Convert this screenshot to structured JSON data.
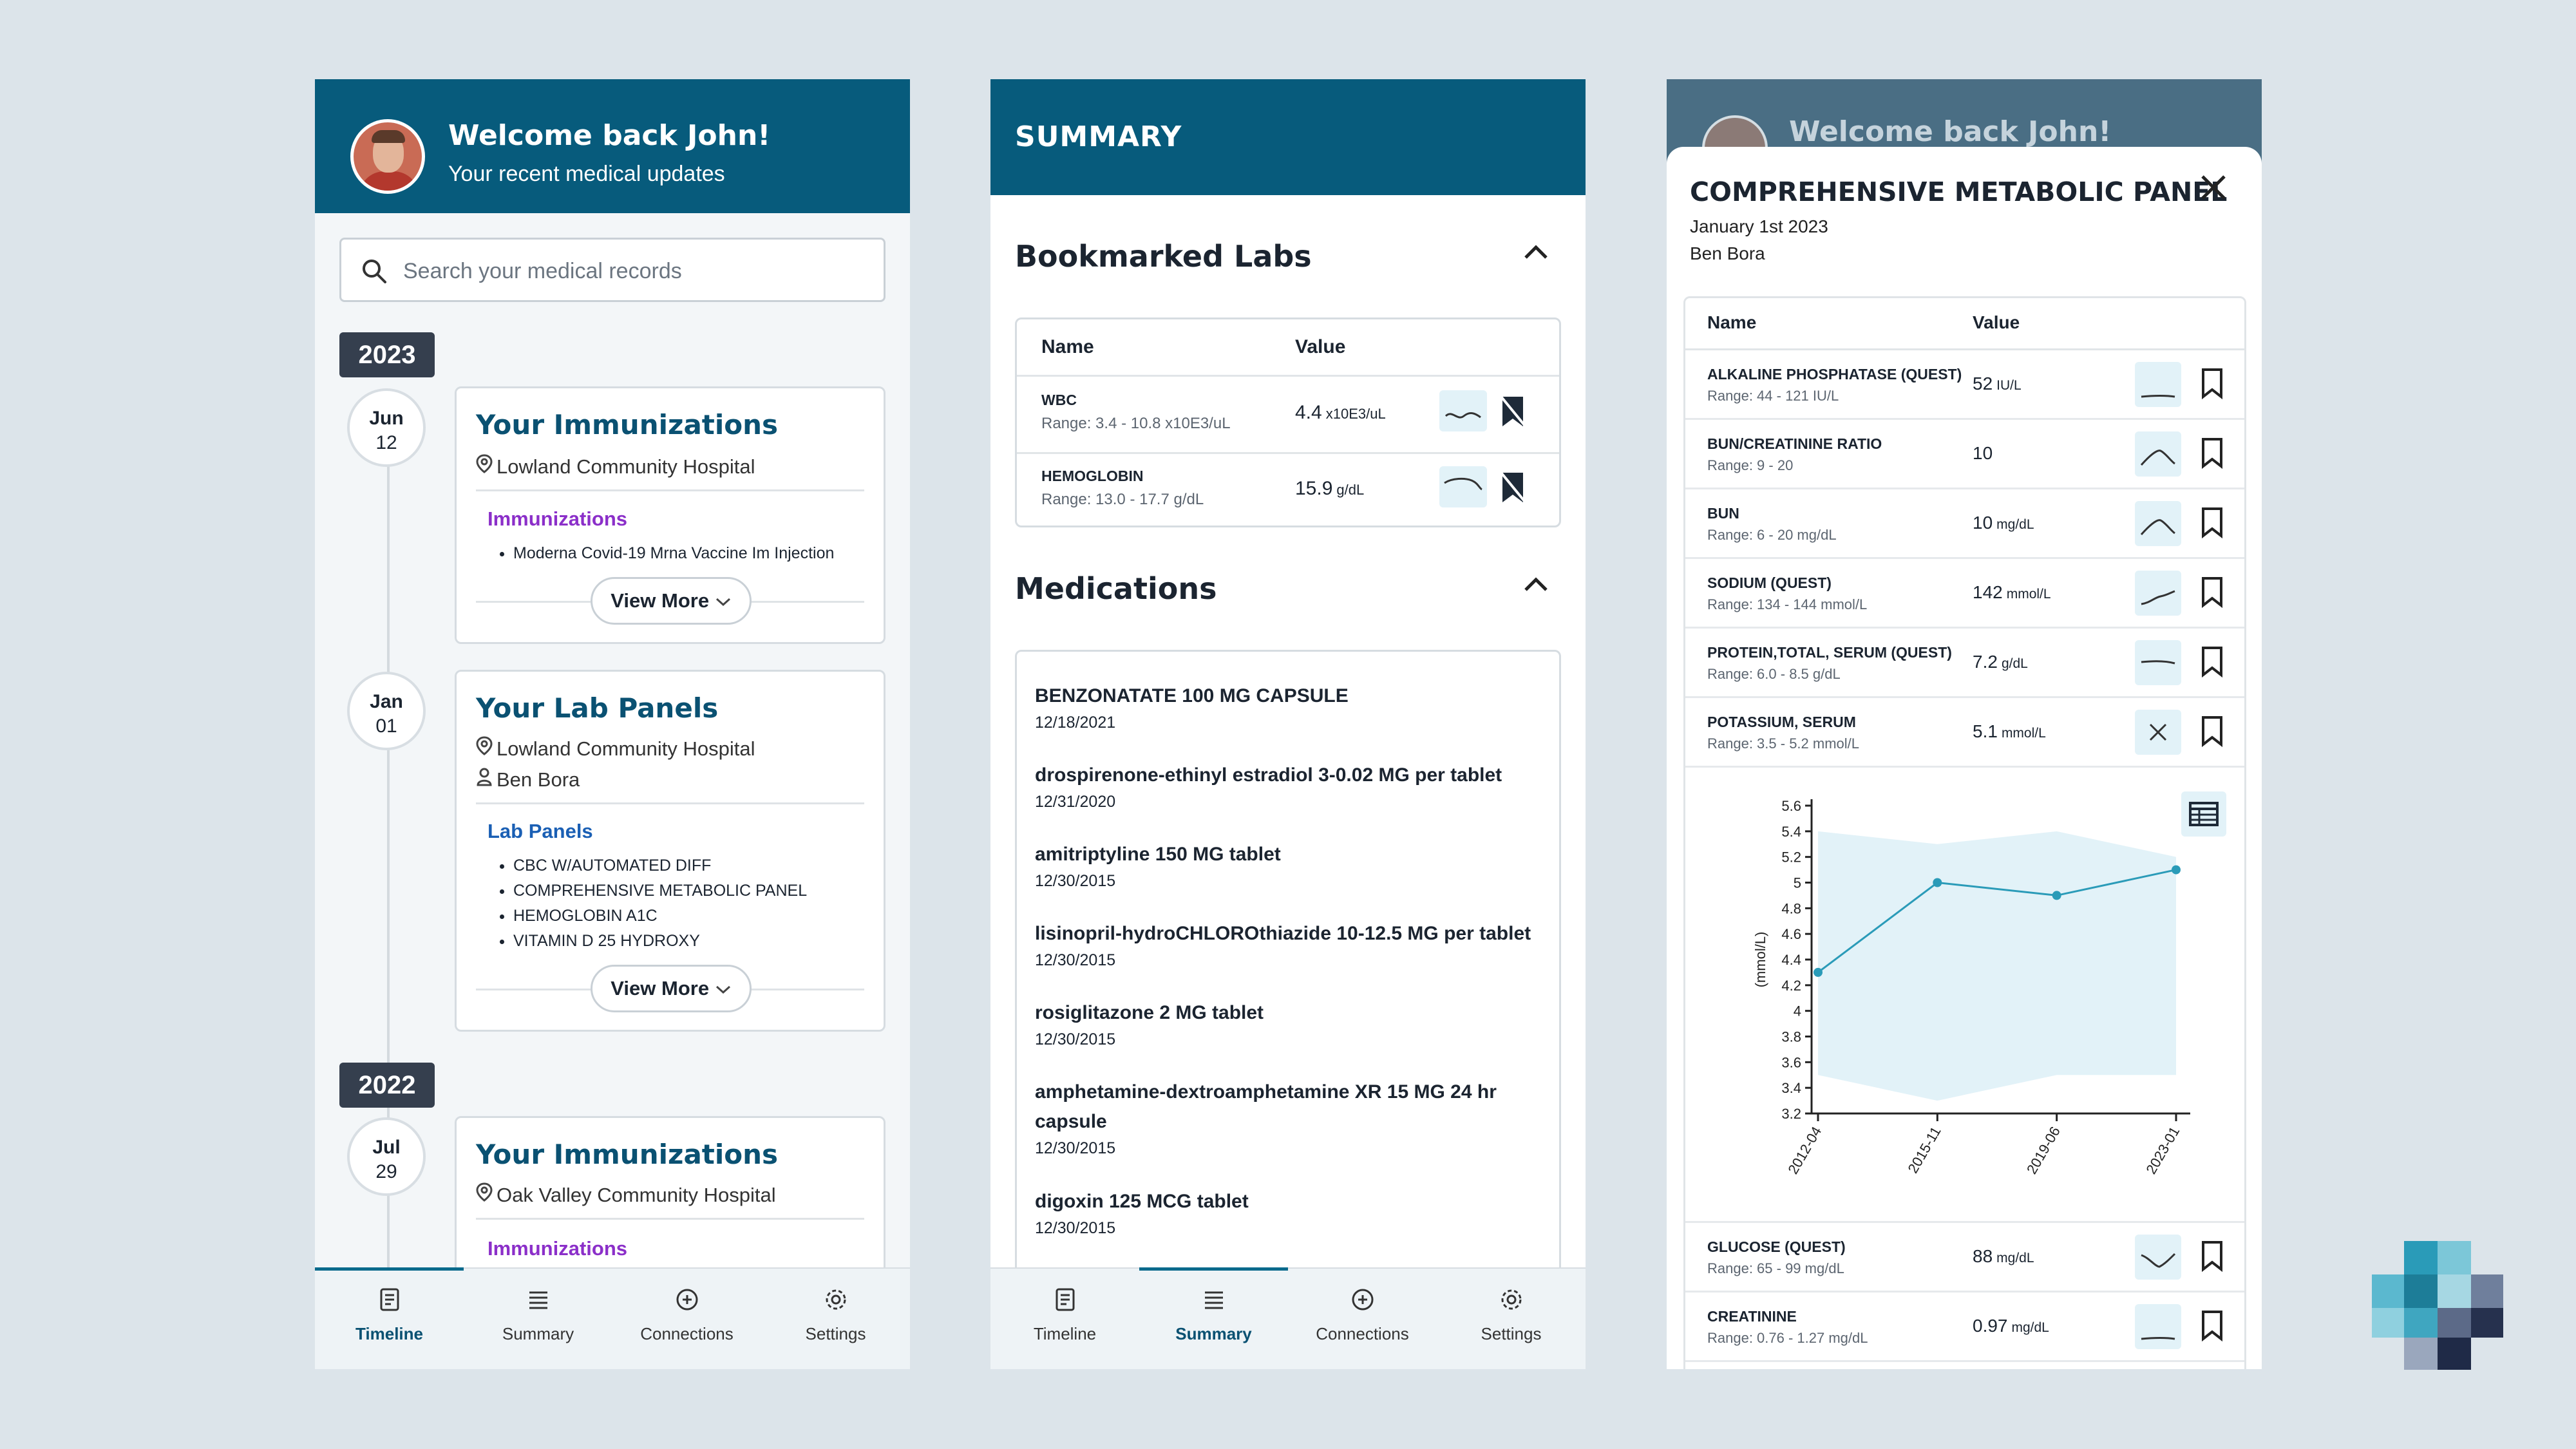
{
  "timeline_screen": {
    "header": {
      "title": "Welcome back John!",
      "subtitle": "Your recent medical updates"
    },
    "search": {
      "placeholder": "Search your medical records"
    },
    "years": [
      "2023",
      "2022"
    ],
    "entries": [
      {
        "month": "Jun",
        "day": "12",
        "title": "Your Immunizations",
        "location": "Lowland Community Hospital",
        "section": "Immunizations",
        "items": [
          "Moderna Covid-19 Mrna Vaccine Im Injection"
        ],
        "more": "View More"
      },
      {
        "month": "Jan",
        "day": "01",
        "title": "Your Lab Panels",
        "location": "Lowland Community Hospital",
        "person": "Ben Bora",
        "section": "Lab Panels",
        "items": [
          "CBC W/AUTOMATED DIFF",
          "COMPREHENSIVE METABOLIC PANEL",
          "HEMOGLOBIN A1C",
          "VITAMIN D 25 HYDROXY"
        ],
        "more": "View More"
      },
      {
        "month": "Jul",
        "day": "29",
        "title": "Your Immunizations",
        "location": "Oak Valley Community Hospital",
        "section": "Immunizations"
      }
    ],
    "colors": {
      "header": "#075b7c",
      "immunization_section": "#8b2fc9",
      "lab_section": "#1a5fb4"
    }
  },
  "nav": [
    "Timeline",
    "Summary",
    "Connections",
    "Settings"
  ],
  "summary_screen": {
    "header": {
      "title": "SUMMARY"
    },
    "bookmarked": {
      "title": "Bookmarked Labs",
      "columns": [
        "Name",
        "Value"
      ],
      "rows": [
        {
          "name": "WBC",
          "range": "Range: 3.4 - 10.8 x10E3/uL",
          "value": "4.4",
          "unit": "x10E3/uL"
        },
        {
          "name": "HEMOGLOBIN",
          "range": "Range: 13.0 - 17.7 g/dL",
          "value": "15.9",
          "unit": "g/dL"
        }
      ]
    },
    "medications": {
      "title": "Medications",
      "items": [
        {
          "name": "BENZONATATE 100 MG CAPSULE",
          "date": "12/18/2021"
        },
        {
          "name": "drospirenone-ethinyl estradiol 3-0.02 MG per tablet",
          "date": "12/31/2020"
        },
        {
          "name": "amitriptyline 150 MG tablet",
          "date": "12/30/2015"
        },
        {
          "name": "lisinopril-hydroCHLOROthiazide 10-12.5 MG per tablet",
          "date": "12/30/2015"
        },
        {
          "name": "rosiglitazone 2 MG tablet",
          "date": "12/30/2015"
        },
        {
          "name": "amphetamine-dextroamphetamine XR 15 MG 24 hr capsule",
          "date": "12/30/2015"
        },
        {
          "name": "digoxin 125 MCG tablet",
          "date": "12/30/2015"
        }
      ]
    }
  },
  "panel_screen": {
    "background_title": "Welcome back John!",
    "title": "COMPREHENSIVE METABOLIC PANEL",
    "date": "January 1st 2023",
    "person": "Ben Bora",
    "columns": [
      "Name",
      "Value"
    ],
    "rows": [
      {
        "name": "ALKALINE PHOSPHATASE (QUEST)",
        "range": "Range: 44 - 121 IU/L",
        "value": "52",
        "unit": "IU/L",
        "trend": "flat-low"
      },
      {
        "name": "BUN/CREATININE RATIO",
        "range": "Range: 9 - 20",
        "value": "10",
        "unit": "",
        "trend": "peak"
      },
      {
        "name": "BUN",
        "range": "Range: 6 - 20 mg/dL",
        "value": "10",
        "unit": "mg/dL",
        "trend": "peak"
      },
      {
        "name": "SODIUM (QUEST)",
        "range": "Range: 134 - 144 mmol/L",
        "value": "142",
        "unit": "mmol/L",
        "trend": "rise"
      },
      {
        "name": "PROTEIN,TOTAL, SERUM (QUEST)",
        "range": "Range: 6.0 - 8.5 g/dL",
        "value": "7.2",
        "unit": "g/dL",
        "trend": "flat"
      },
      {
        "name": "POTASSIUM, SERUM",
        "range": "Range: 3.5 - 5.2 mmol/L",
        "value": "5.1",
        "unit": "mmol/L",
        "trend": "close"
      }
    ],
    "rows_after": [
      {
        "name": "GLUCOSE (QUEST)",
        "range": "Range: 65 - 99 mg/dL",
        "value": "88",
        "unit": "mg/dL",
        "trend": "dip"
      },
      {
        "name": "CREATININE",
        "range": "Range: 0.76 - 1.27 mg/dL",
        "value": "0.97",
        "unit": "mg/dL",
        "trend": "flat-low"
      }
    ]
  },
  "chart_data": {
    "type": "line",
    "ylabel": "(mmol/L)",
    "ylim": [
      3.2,
      5.6
    ],
    "yticks": [
      "5.6",
      "5.4",
      "5.2",
      "5",
      "4.8",
      "4.6",
      "4.4",
      "4.2",
      "4",
      "3.8",
      "3.6",
      "3.4",
      "3.2"
    ],
    "categories": [
      "2012-04",
      "2015-11",
      "2019-06",
      "2023-01"
    ],
    "series": [
      {
        "values": [
          4.3,
          5.0,
          4.9,
          5.1
        ]
      }
    ],
    "band_upper": [
      5.4,
      5.3,
      5.4,
      5.2
    ],
    "band_lower": [
      3.5,
      3.3,
      3.5,
      3.5
    ],
    "colors": {
      "line": "#2a9bb8",
      "band": "#e2f2f8"
    }
  }
}
